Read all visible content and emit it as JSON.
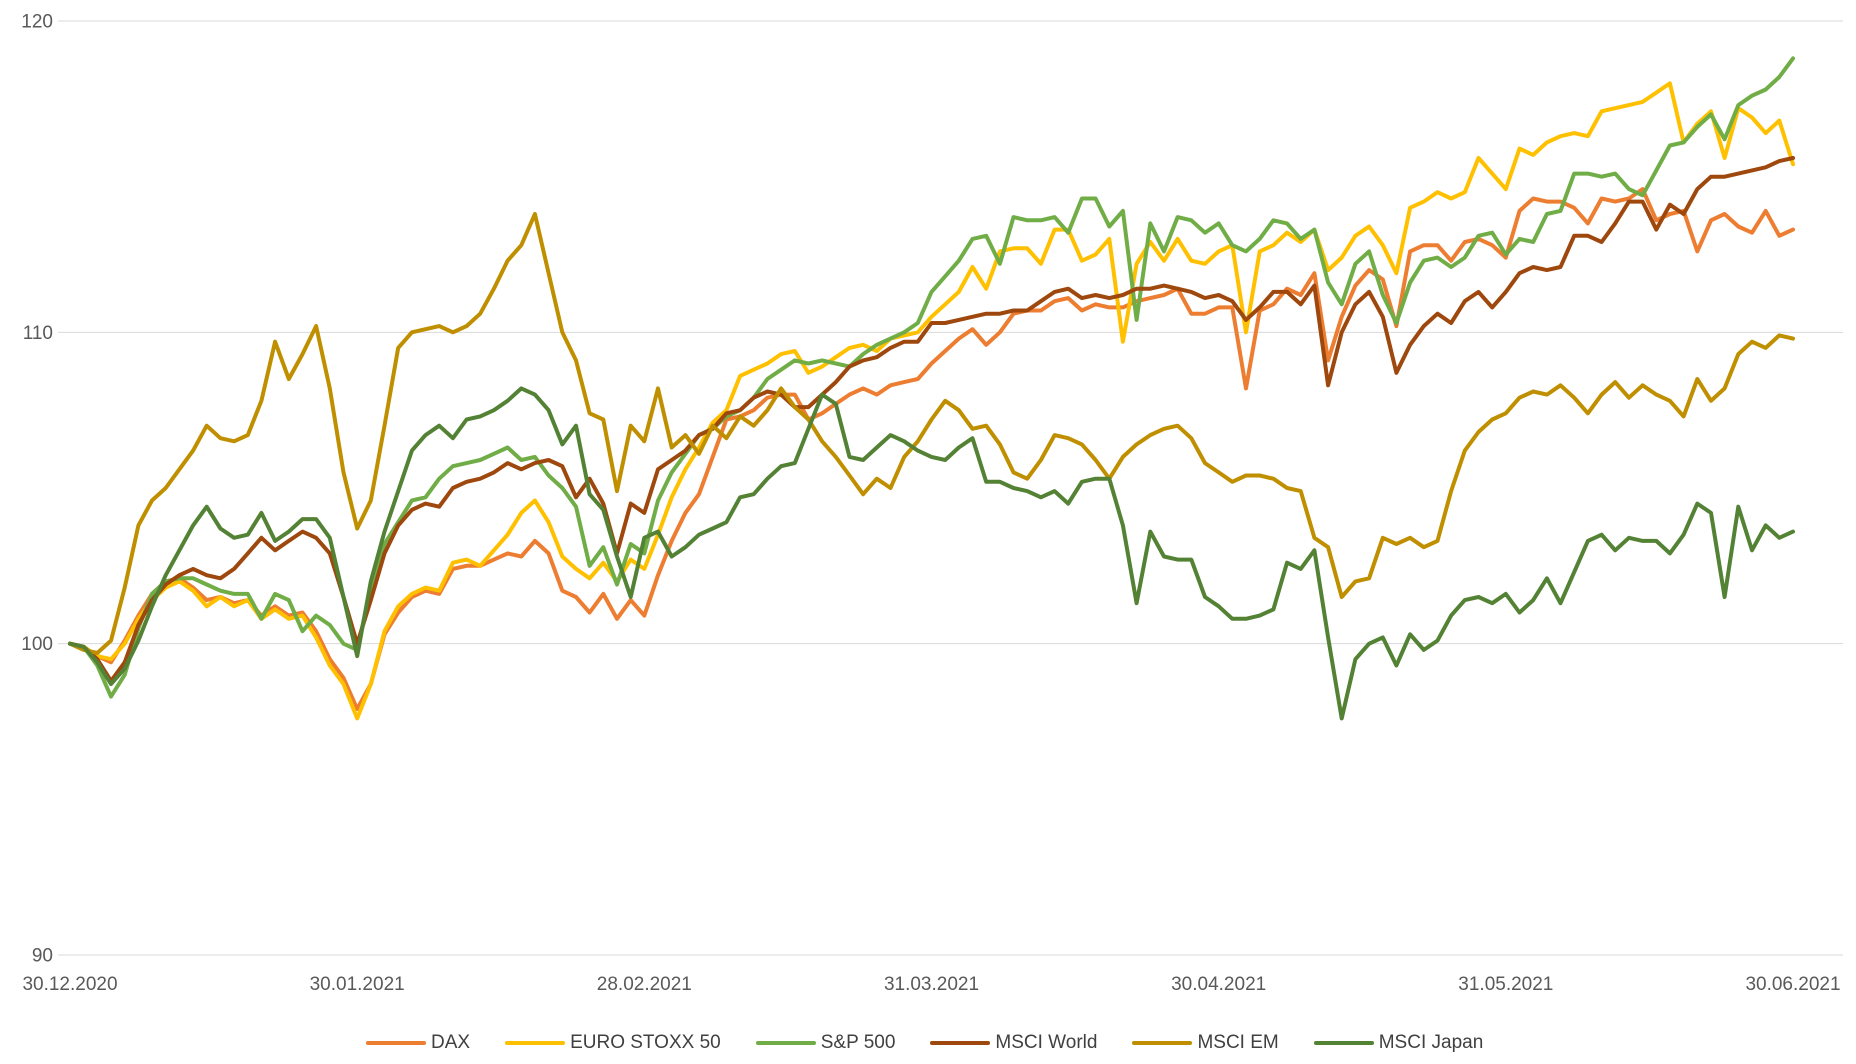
{
  "chart_data": {
    "type": "line",
    "title": "",
    "grid": "horizontal",
    "legend_position": "bottom",
    "x_axis": {
      "num_points": 127,
      "tick_indices": [
        0,
        21,
        42,
        63,
        84,
        105,
        126
      ],
      "tick_labels": [
        "30.12.2020",
        "30.01.2021",
        "28.02.2021",
        "31.03.2021",
        "30.04.2021",
        "31.05.2021",
        "30.06.2021"
      ]
    },
    "y_axis": {
      "ticks": [
        90,
        100,
        110,
        120
      ],
      "min": 90,
      "max": 120
    },
    "series": [
      {
        "name": "DAX",
        "color": "#ED7D31",
        "values": [
          100.0,
          99.9,
          99.6,
          99.4,
          100.1,
          100.9,
          101.6,
          102.0,
          102.1,
          101.8,
          101.4,
          101.5,
          101.3,
          101.4,
          100.9,
          101.2,
          100.9,
          101.0,
          100.4,
          99.5,
          98.9,
          97.9,
          98.7,
          100.3,
          101.0,
          101.5,
          101.7,
          101.6,
          102.4,
          102.5,
          102.5,
          102.7,
          102.9,
          102.8,
          103.3,
          102.9,
          101.7,
          101.5,
          101.0,
          101.6,
          100.8,
          101.4,
          100.9,
          102.2,
          103.3,
          104.2,
          104.8,
          106.0,
          107.2,
          107.3,
          107.5,
          107.9,
          108.0,
          108.0,
          107.2,
          107.4,
          107.7,
          108.0,
          108.2,
          108.0,
          108.3,
          108.4,
          108.5,
          109.0,
          109.4,
          109.8,
          110.1,
          109.6,
          110.0,
          110.6,
          110.7,
          110.7,
          111.0,
          111.1,
          110.7,
          110.9,
          110.8,
          110.8,
          111.0,
          111.1,
          111.2,
          111.4,
          110.6,
          110.6,
          110.8,
          110.8,
          108.2,
          110.7,
          110.9,
          111.4,
          111.2,
          111.9,
          109.1,
          110.5,
          111.5,
          112.0,
          111.7,
          110.2,
          112.6,
          112.8,
          112.8,
          112.3,
          112.9,
          113.0,
          112.8,
          112.4,
          113.9,
          114.3,
          114.2,
          114.2,
          114.0,
          113.5,
          114.3,
          114.2,
          114.3,
          114.6,
          113.6,
          113.8,
          113.9,
          112.6,
          113.6,
          113.8,
          113.4,
          113.2,
          113.9,
          113.1,
          113.3
        ]
      },
      {
        "name": "EURO STOXX 50",
        "color": "#FFC000",
        "values": [
          100.0,
          99.9,
          99.6,
          99.5,
          100.0,
          100.8,
          101.4,
          101.8,
          102.0,
          101.7,
          101.2,
          101.5,
          101.2,
          101.4,
          100.8,
          101.1,
          100.8,
          100.9,
          100.2,
          99.3,
          98.7,
          97.6,
          98.7,
          100.4,
          101.2,
          101.6,
          101.8,
          101.7,
          102.6,
          102.7,
          102.5,
          103.0,
          103.5,
          104.2,
          104.6,
          103.9,
          102.8,
          102.4,
          102.1,
          102.6,
          102.0,
          102.7,
          102.4,
          103.5,
          104.7,
          105.6,
          106.3,
          107.1,
          107.5,
          108.6,
          108.8,
          109.0,
          109.3,
          109.4,
          108.7,
          108.9,
          109.2,
          109.5,
          109.6,
          109.4,
          109.8,
          109.9,
          110.0,
          110.5,
          110.9,
          111.3,
          112.1,
          111.4,
          112.6,
          112.7,
          112.7,
          112.2,
          113.3,
          113.3,
          112.3,
          112.5,
          113.0,
          109.7,
          112.2,
          112.9,
          112.3,
          113.0,
          112.3,
          112.2,
          112.6,
          112.8,
          110.0,
          112.6,
          112.8,
          113.2,
          112.9,
          113.3,
          112.0,
          112.4,
          113.1,
          113.4,
          112.8,
          111.9,
          114.0,
          114.2,
          114.5,
          114.3,
          114.5,
          115.6,
          115.1,
          114.6,
          115.9,
          115.7,
          116.1,
          116.3,
          116.4,
          116.3,
          117.1,
          117.2,
          117.3,
          117.4,
          117.7,
          118.0,
          116.1,
          116.7,
          117.1,
          115.6,
          117.2,
          116.9,
          116.4,
          116.8,
          115.4
        ]
      },
      {
        "name": "S&P 500",
        "color": "#70AD47",
        "values": [
          100.0,
          99.9,
          99.3,
          98.3,
          99.0,
          100.5,
          101.6,
          102.0,
          102.1,
          102.1,
          101.9,
          101.7,
          101.6,
          101.6,
          100.8,
          101.6,
          101.4,
          100.4,
          100.9,
          100.6,
          100.0,
          99.8,
          101.8,
          103.2,
          103.9,
          104.6,
          104.7,
          105.3,
          105.7,
          105.8,
          105.9,
          106.1,
          106.3,
          105.9,
          106.0,
          105.4,
          105.0,
          104.4,
          102.5,
          103.1,
          101.9,
          103.2,
          102.9,
          104.6,
          105.5,
          106.1,
          106.7,
          106.9,
          107.3,
          107.5,
          107.9,
          108.5,
          108.8,
          109.1,
          109.0,
          109.1,
          109.0,
          108.9,
          109.3,
          109.6,
          109.8,
          110.0,
          110.3,
          111.3,
          111.8,
          112.3,
          113.0,
          113.1,
          112.2,
          113.7,
          113.6,
          113.6,
          113.7,
          113.2,
          114.3,
          114.3,
          113.4,
          113.9,
          110.4,
          113.5,
          112.6,
          113.7,
          113.6,
          113.2,
          113.5,
          112.8,
          112.6,
          113.0,
          113.6,
          113.5,
          113.0,
          113.3,
          111.6,
          110.9,
          112.2,
          112.6,
          111.2,
          110.3,
          111.6,
          112.3,
          112.4,
          112.1,
          112.4,
          113.1,
          113.2,
          112.5,
          113.0,
          112.9,
          113.8,
          113.9,
          115.1,
          115.1,
          115.0,
          115.1,
          114.6,
          114.4,
          115.2,
          116.0,
          116.1,
          116.6,
          117.0,
          116.2,
          117.3,
          117.6,
          117.8,
          118.2,
          118.8
        ]
      },
      {
        "name": "MSCI World",
        "color": "#9E480E",
        "values": [
          100.0,
          99.9,
          99.5,
          98.8,
          99.4,
          100.6,
          101.4,
          101.9,
          102.2,
          102.4,
          102.2,
          102.1,
          102.4,
          102.9,
          103.4,
          103.0,
          103.3,
          103.6,
          103.4,
          102.9,
          101.5,
          100.0,
          101.4,
          102.9,
          103.8,
          104.3,
          104.5,
          104.4,
          105.0,
          105.2,
          105.3,
          105.5,
          105.8,
          105.6,
          105.8,
          105.9,
          105.7,
          104.7,
          105.3,
          104.5,
          102.9,
          104.5,
          104.2,
          105.6,
          105.9,
          106.2,
          106.7,
          106.9,
          107.4,
          107.5,
          107.9,
          108.1,
          108.0,
          107.6,
          107.6,
          108.0,
          108.4,
          108.9,
          109.1,
          109.2,
          109.5,
          109.7,
          109.7,
          110.3,
          110.3,
          110.4,
          110.5,
          110.6,
          110.6,
          110.7,
          110.7,
          111.0,
          111.3,
          111.4,
          111.1,
          111.2,
          111.1,
          111.2,
          111.4,
          111.4,
          111.5,
          111.4,
          111.3,
          111.1,
          111.2,
          111.0,
          110.4,
          110.8,
          111.3,
          111.3,
          110.9,
          111.5,
          108.3,
          110.0,
          110.9,
          111.3,
          110.5,
          108.7,
          109.6,
          110.2,
          110.6,
          110.3,
          111.0,
          111.3,
          110.8,
          111.3,
          111.9,
          112.1,
          112.0,
          112.1,
          113.1,
          113.1,
          112.9,
          113.5,
          114.2,
          114.2,
          113.3,
          114.1,
          113.8,
          114.6,
          115.0,
          115.0,
          115.1,
          115.2,
          115.3,
          115.5,
          115.6
        ]
      },
      {
        "name": "MSCI EM",
        "color": "#BF8F00",
        "values": [
          100.0,
          99.8,
          99.7,
          100.1,
          101.8,
          103.8,
          104.6,
          105.0,
          105.6,
          106.2,
          107.0,
          106.6,
          106.5,
          106.7,
          107.8,
          109.7,
          108.5,
          109.3,
          110.2,
          108.2,
          105.5,
          103.7,
          104.6,
          107.0,
          109.5,
          110.0,
          110.1,
          110.2,
          110.0,
          110.2,
          110.6,
          111.4,
          112.3,
          112.8,
          113.8,
          111.9,
          110.0,
          109.1,
          107.4,
          107.2,
          104.9,
          107.0,
          106.5,
          108.2,
          106.3,
          106.7,
          106.1,
          107.0,
          106.6,
          107.3,
          107.0,
          107.5,
          108.2,
          107.6,
          107.2,
          106.5,
          106.0,
          105.4,
          104.8,
          105.3,
          105.0,
          106.0,
          106.5,
          107.2,
          107.8,
          107.5,
          106.9,
          107.0,
          106.4,
          105.5,
          105.3,
          105.9,
          106.7,
          106.6,
          106.4,
          105.9,
          105.3,
          106.0,
          106.4,
          106.7,
          106.9,
          107.0,
          106.6,
          105.8,
          105.5,
          105.2,
          105.4,
          105.4,
          105.3,
          105.0,
          104.9,
          103.4,
          103.1,
          101.5,
          102.0,
          102.1,
          103.4,
          103.2,
          103.4,
          103.1,
          103.3,
          104.9,
          106.2,
          106.8,
          107.2,
          107.4,
          107.9,
          108.1,
          108.0,
          108.3,
          107.9,
          107.4,
          108.0,
          108.4,
          107.9,
          108.3,
          108.0,
          107.8,
          107.3,
          108.5,
          107.8,
          108.2,
          109.3,
          109.7,
          109.5,
          109.9,
          109.8
        ]
      },
      {
        "name": "MSCI Japan",
        "color": "#548235",
        "values": [
          100.0,
          99.9,
          99.4,
          98.7,
          99.2,
          100.1,
          101.2,
          102.2,
          103.0,
          103.8,
          104.4,
          103.7,
          103.4,
          103.5,
          104.2,
          103.3,
          103.6,
          104.0,
          104.0,
          103.4,
          101.5,
          99.6,
          102.0,
          103.6,
          104.9,
          106.2,
          106.7,
          107.0,
          106.6,
          107.2,
          107.3,
          107.5,
          107.8,
          108.2,
          108.0,
          107.5,
          106.4,
          107.0,
          104.8,
          104.3,
          102.8,
          101.5,
          103.4,
          103.6,
          102.8,
          103.1,
          103.5,
          103.7,
          103.9,
          104.7,
          104.8,
          105.3,
          105.7,
          105.8,
          106.9,
          108.0,
          107.7,
          106.0,
          105.9,
          106.3,
          106.7,
          106.5,
          106.2,
          106.0,
          105.9,
          106.3,
          106.6,
          105.2,
          105.2,
          105.0,
          104.9,
          104.7,
          104.9,
          104.5,
          105.2,
          105.3,
          105.3,
          103.8,
          101.3,
          103.6,
          102.8,
          102.7,
          102.7,
          101.5,
          101.2,
          100.8,
          100.8,
          100.9,
          101.1,
          102.6,
          102.4,
          103.0,
          100.2,
          97.6,
          99.5,
          100.0,
          100.2,
          99.3,
          100.3,
          99.8,
          100.1,
          100.9,
          101.4,
          101.5,
          101.3,
          101.6,
          101.0,
          101.4,
          102.1,
          101.3,
          102.3,
          103.3,
          103.5,
          103.0,
          103.4,
          103.3,
          103.3,
          102.9,
          103.5,
          104.5,
          104.2,
          101.5,
          104.4,
          103.0,
          103.8,
          103.4,
          103.6
        ]
      }
    ]
  },
  "colors": {
    "background": "#FFFFFF",
    "grid": "#D9D9D9",
    "tick_text": "#595959",
    "legend_text": "#404040"
  }
}
